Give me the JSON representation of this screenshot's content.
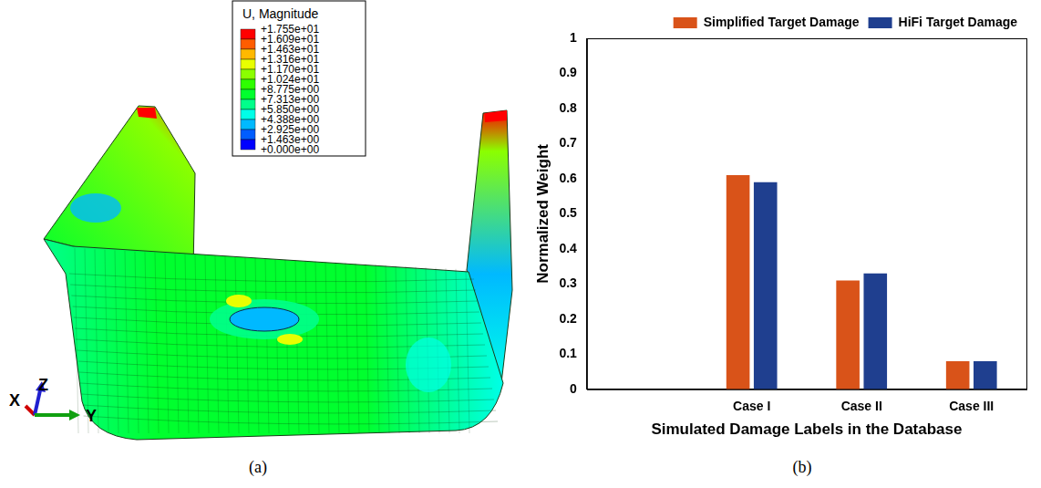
{
  "chart_data": {
    "type": "bar",
    "label": "(b)",
    "x_label": "Simulated Damage Labels in the Database",
    "y_label": "Normalized Weight",
    "categories": [
      null,
      "Case I",
      "Case II",
      "Case III"
    ],
    "series": [
      {
        "name": "Simplified Target Damage",
        "color": "#d95319",
        "values": [
          null,
          0.61,
          0.31,
          0.08
        ]
      },
      {
        "name": "HiFi Target Damage",
        "color": "#1f3f8f",
        "values": [
          null,
          0.59,
          0.33,
          0.08
        ]
      }
    ],
    "ylim": [
      0,
      1
    ],
    "yticks": [
      0,
      0.1,
      0.2,
      0.3,
      0.4,
      0.5,
      0.6,
      0.7,
      0.8,
      0.9,
      1
    ],
    "grid": false,
    "legend": "top right"
  },
  "panel_a": {
    "label": "(a)",
    "contour": {
      "title": "U, Magnitude",
      "range": [
        0,
        17.55
      ],
      "ticks": [
        {
          "value": 17.55,
          "label": "+1.755e+01"
        },
        {
          "value": 16.09,
          "label": "+1.609e+01"
        },
        {
          "value": 14.63,
          "label": "+1.463e+01"
        },
        {
          "value": 13.16,
          "label": "+1.316e+01"
        },
        {
          "value": 11.7,
          "label": "+1.170e+01"
        },
        {
          "value": 10.24,
          "label": "+1.024e+01"
        },
        {
          "value": 8.775,
          "label": "+8.775e+00"
        },
        {
          "value": 7.313,
          "label": "+7.313e+00"
        },
        {
          "value": 5.85,
          "label": "+5.850e+00"
        },
        {
          "value": 4.388,
          "label": "+4.388e+00"
        },
        {
          "value": 2.925,
          "label": "+2.925e+00"
        },
        {
          "value": 1.463,
          "label": "+1.463e+00"
        },
        {
          "value": 0,
          "label": "+0.000e+00"
        }
      ],
      "colors": [
        "#ff0000",
        "#ff5d00",
        "#ffb900",
        "#e8ff00",
        "#8bff00",
        "#2eff00",
        "#00ff2e",
        "#00ff8b",
        "#00ffe8",
        "#00b9ff",
        "#005dff",
        "#0000ff"
      ]
    },
    "axis_triad": [
      "X",
      "Z",
      "Y"
    ]
  }
}
